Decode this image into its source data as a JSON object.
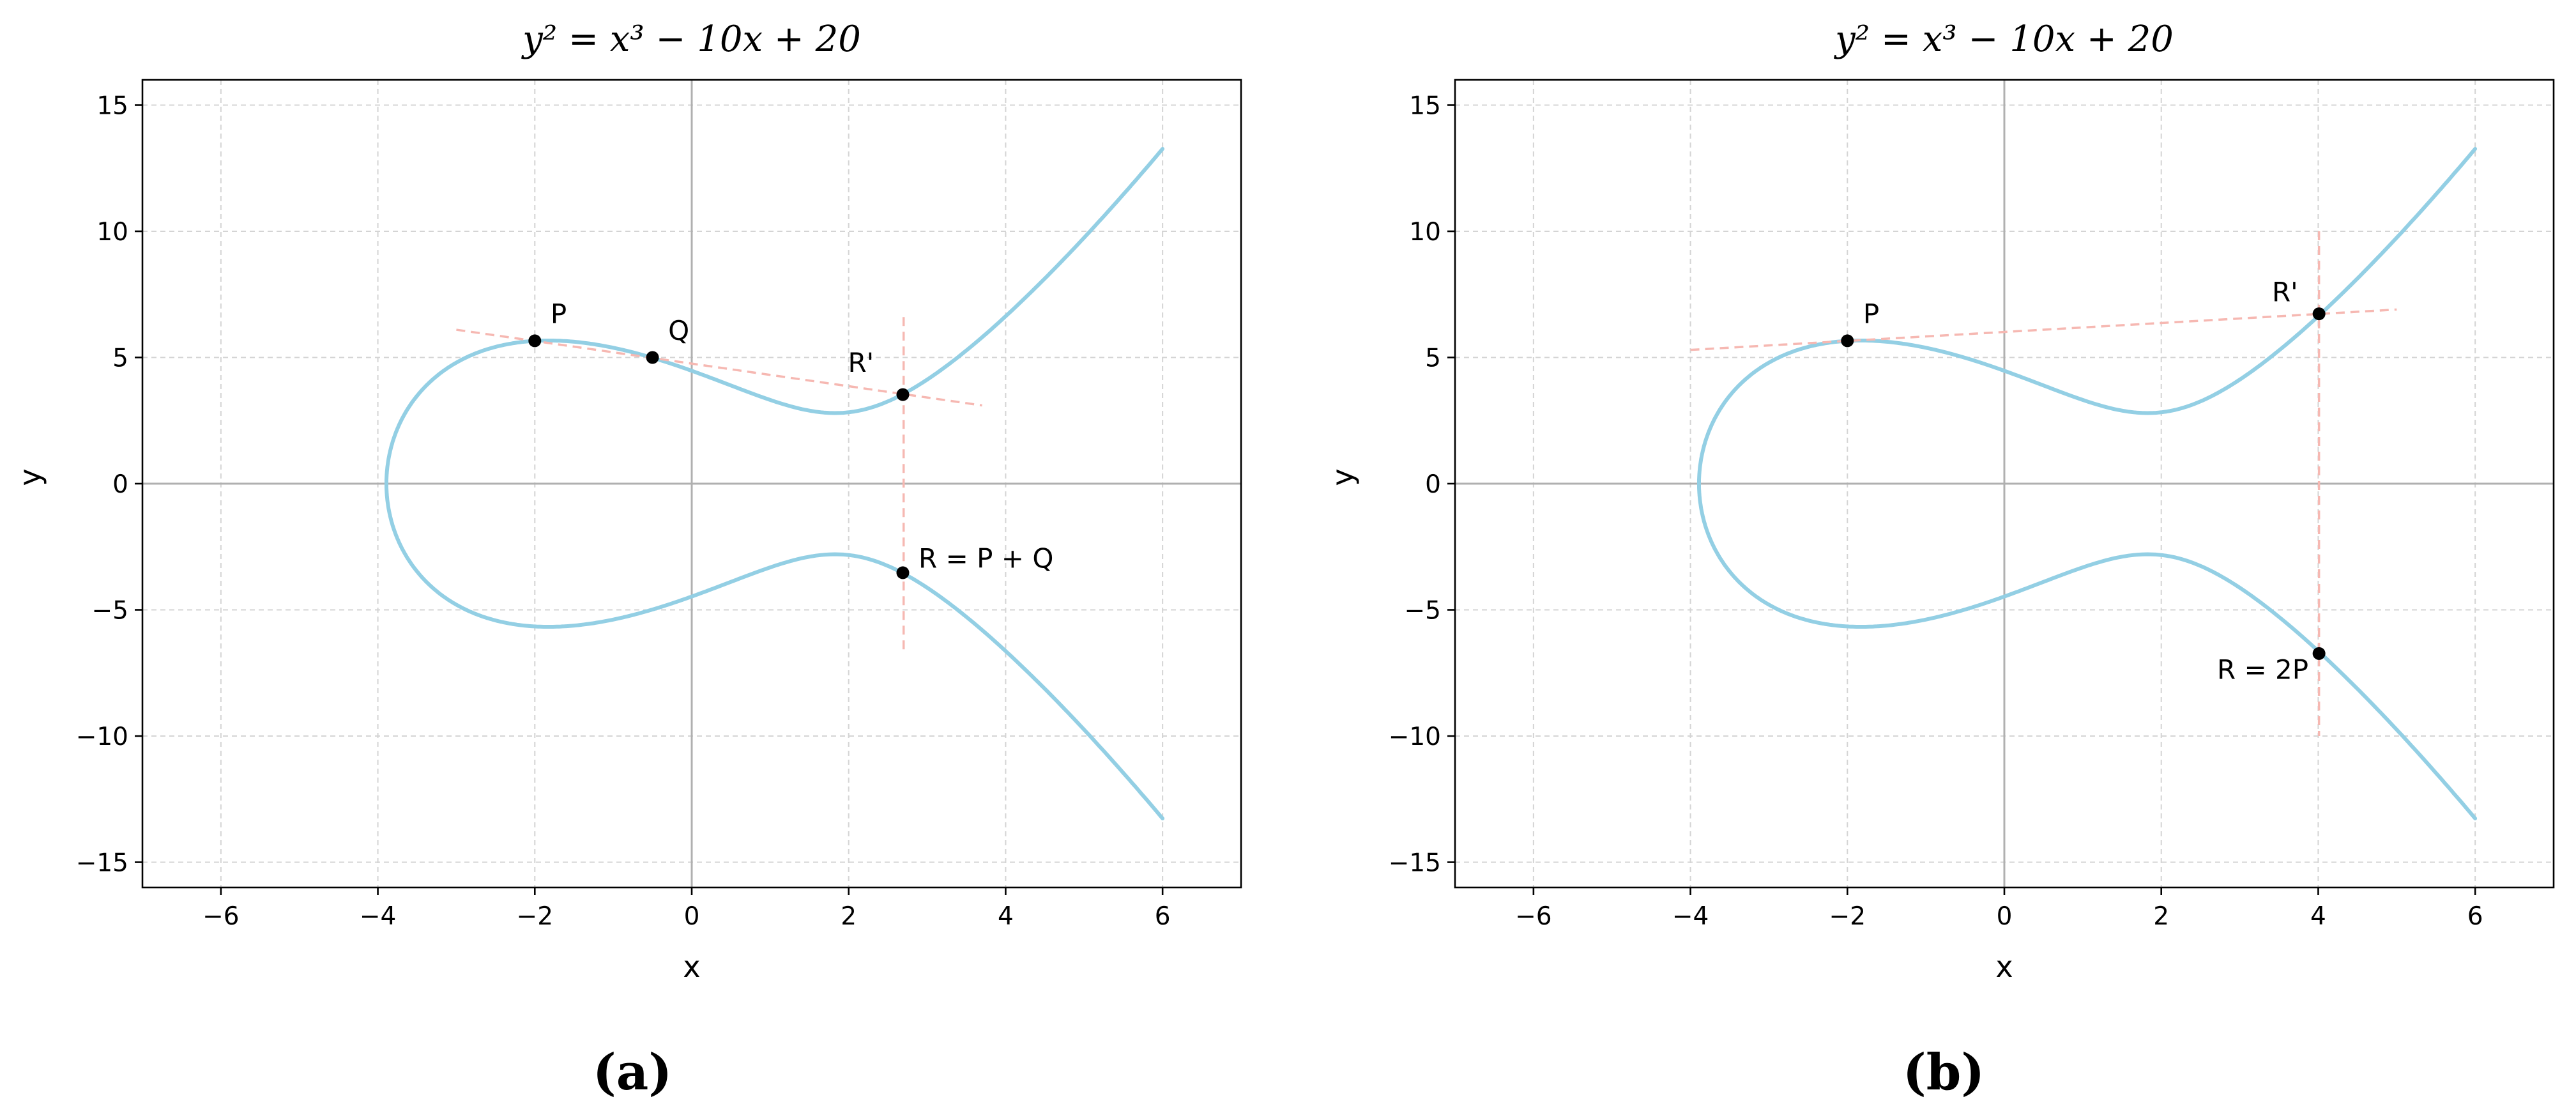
{
  "chart_data": [
    {
      "type": "line",
      "panel": "(a)",
      "title": "y² = x³ − 10x + 20",
      "xlabel": "x",
      "ylabel": "y",
      "xlim": [
        -7,
        7
      ],
      "ylim": [
        -16,
        16
      ],
      "xticks": [
        -6,
        -4,
        -2,
        0,
        2,
        4,
        6
      ],
      "yticks": [
        -15,
        -10,
        -5,
        0,
        5,
        10,
        15
      ],
      "xtick_labels": [
        "−6",
        "−4",
        "−2",
        "0",
        "2",
        "4",
        "6"
      ],
      "ytick_labels": [
        "−15",
        "−10",
        "−5",
        "0",
        "5",
        "10",
        "15"
      ],
      "grid": true,
      "curve": {
        "a": -10,
        "b": 20,
        "x_range": [
          -3.9,
          6
        ]
      },
      "guides": [
        {
          "from": [
            -3,
            6.1
          ],
          "to": [
            3.7,
            3.1
          ]
        },
        {
          "from": [
            2.7,
            6.6
          ],
          "to": [
            2.7,
            -6.6
          ]
        }
      ],
      "points": [
        {
          "label": "P",
          "x": -2,
          "y": 5.66,
          "label_dx": 0.2,
          "label_dy": 0.7
        },
        {
          "label": "Q",
          "x": -0.5,
          "y": 5.0,
          "label_dx": 0.2,
          "label_dy": 0.7
        },
        {
          "label": "R'",
          "x": 2.69,
          "y": 3.53,
          "label_dx": -0.7,
          "label_dy": 0.9
        },
        {
          "label": "R = P + Q",
          "x": 2.69,
          "y": -3.53,
          "label_dx": 0.2,
          "label_dy": 0.2
        }
      ]
    },
    {
      "type": "line",
      "panel": "(b)",
      "title": "y² = x³ − 10x + 20",
      "xlabel": "x",
      "ylabel": "y",
      "xlim": [
        -7,
        7
      ],
      "ylim": [
        -16,
        16
      ],
      "xticks": [
        -6,
        -4,
        -2,
        0,
        2,
        4,
        6
      ],
      "yticks": [
        -15,
        -10,
        -5,
        0,
        5,
        10,
        15
      ],
      "xtick_labels": [
        "−6",
        "−4",
        "−2",
        "0",
        "2",
        "4",
        "6"
      ],
      "ytick_labels": [
        "−15",
        "−10",
        "−5",
        "0",
        "5",
        "10",
        "15"
      ],
      "grid": true,
      "curve": {
        "a": -10,
        "b": 20,
        "x_range": [
          -3.9,
          6
        ]
      },
      "guides": [
        {
          "from": [
            -4,
            5.3
          ],
          "to": [
            5,
            6.9
          ]
        },
        {
          "from": [
            4.01,
            10
          ],
          "to": [
            4.01,
            -10
          ]
        }
      ],
      "points": [
        {
          "label": "P",
          "x": -2,
          "y": 5.66,
          "label_dx": 0.2,
          "label_dy": 0.7
        },
        {
          "label": "R'",
          "x": 4.01,
          "y": 6.73,
          "label_dx": -0.6,
          "label_dy": 0.5
        },
        {
          "label": "R = 2P",
          "x": 4.01,
          "y": -6.73,
          "label_dx": -1.3,
          "label_dy": -1.0
        }
      ]
    }
  ]
}
